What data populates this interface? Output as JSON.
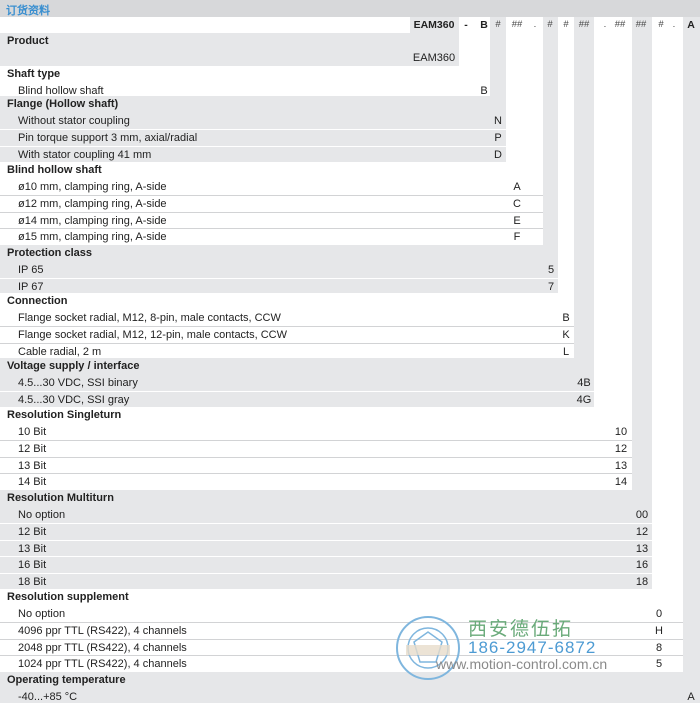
{
  "titlebar": {
    "title": "订货资料"
  },
  "header": {
    "codes": [
      "EAM360",
      "-",
      "B",
      "#",
      "##",
      ".",
      "#",
      "#",
      "##",
      ".",
      "##",
      "##",
      "#",
      ".",
      "A"
    ]
  },
  "sections": [
    {
      "title": "Product",
      "items": [
        {
          "label": "",
          "code": "EAM360"
        }
      ]
    },
    {
      "title": "Shaft type",
      "items": [
        {
          "label": "Blind hollow shaft",
          "code": "B"
        }
      ]
    },
    {
      "title": "Flange (Hollow shaft)",
      "items": [
        {
          "label": "Without stator coupling",
          "code": "N"
        },
        {
          "label": "Pin torque support 3 mm, axial/radial",
          "code": "P"
        },
        {
          "label": "With stator coupling 41 mm",
          "code": "D"
        }
      ]
    },
    {
      "title": "Blind hollow shaft",
      "items": [
        {
          "label": "ø10 mm, clamping ring, A-side",
          "code": "A"
        },
        {
          "label": "ø12 mm, clamping ring, A-side",
          "code": "C"
        },
        {
          "label": "ø14 mm, clamping ring, A-side",
          "code": "E"
        },
        {
          "label": "ø15 mm, clamping ring, A-side",
          "code": "F"
        }
      ]
    },
    {
      "title": "Protection class",
      "items": [
        {
          "label": "IP 65",
          "code": "5"
        },
        {
          "label": "IP 67",
          "code": "7"
        }
      ]
    },
    {
      "title": "Connection",
      "items": [
        {
          "label": "Flange socket radial, M12, 8-pin, male contacts, CCW",
          "code": "B"
        },
        {
          "label": "Flange socket radial, M12, 12-pin, male contacts, CCW",
          "code": "K"
        },
        {
          "label": "Cable radial, 2 m",
          "code": "L"
        }
      ]
    },
    {
      "title": "Voltage supply / interface",
      "items": [
        {
          "label": "4.5...30 VDC, SSI binary",
          "code": "4B"
        },
        {
          "label": "4.5...30 VDC, SSI gray",
          "code": "4G"
        }
      ]
    },
    {
      "title": "Resolution Singleturn",
      "items": [
        {
          "label": "10 Bit",
          "code": "10"
        },
        {
          "label": "12 Bit",
          "code": "12"
        },
        {
          "label": "13 Bit",
          "code": "13"
        },
        {
          "label": "14 Bit",
          "code": "14"
        }
      ]
    },
    {
      "title": "Resolution Multiturn",
      "items": [
        {
          "label": "No option",
          "code": "00"
        },
        {
          "label": "12 Bit",
          "code": "12"
        },
        {
          "label": "13 Bit",
          "code": "13"
        },
        {
          "label": "16 Bit",
          "code": "16"
        },
        {
          "label": "18 Bit",
          "code": "18"
        }
      ]
    },
    {
      "title": "Resolution supplement",
      "items": [
        {
          "label": "No option",
          "code": "0"
        },
        {
          "label": "4096 ppr TTL (RS422), 4 channels",
          "code": "H"
        },
        {
          "label": "2048 ppr TTL (RS422), 4 channels",
          "code": "8"
        },
        {
          "label": "1024 ppr TTL (RS422), 4 channels",
          "code": "5"
        }
      ]
    },
    {
      "title": "Operating temperature",
      "items": [
        {
          "label": "-40...+85 °C",
          "code": "A"
        }
      ]
    }
  ],
  "watermark": {
    "company": "西安德伍拓",
    "phone": "186-2947-6872",
    "url": "www.motion-control.com.cn"
  },
  "colors": {
    "band_gray": "#e6e7e9",
    "title_blue": "#3a8fd0"
  }
}
